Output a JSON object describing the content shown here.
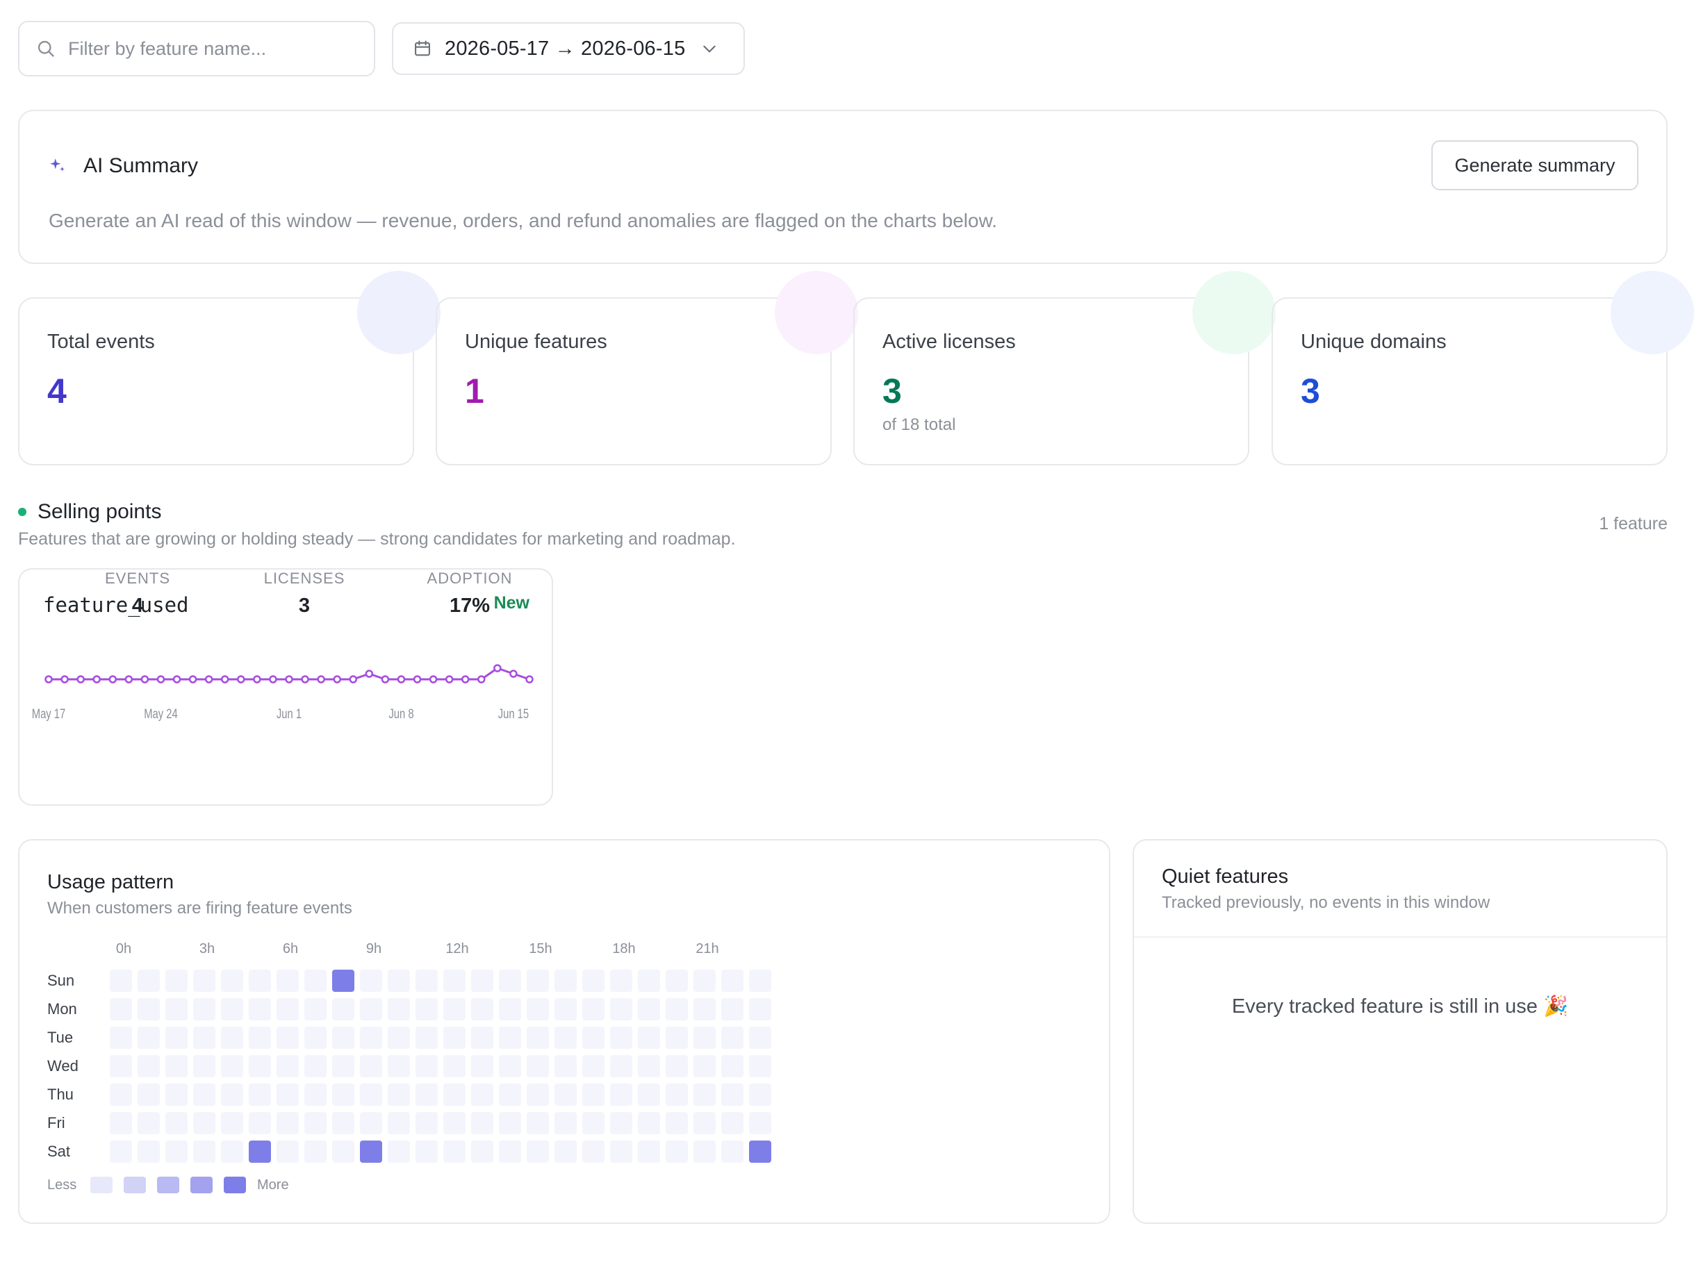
{
  "filters": {
    "search_placeholder": "Filter by feature name...",
    "date_range": "2026-05-17 → 2026-06-15"
  },
  "ai_summary": {
    "title": "AI Summary",
    "description": "Generate an AI read of this window — revenue, orders, and refund anomalies are flagged on the charts below.",
    "button": "Generate summary",
    "accent": "#5b5bd6"
  },
  "stats": [
    {
      "label": "Total events",
      "value": "4",
      "sub": "",
      "color": "#4338ca",
      "blob": "#eef0fe"
    },
    {
      "label": "Unique features",
      "value": "1",
      "sub": "",
      "color": "#a21caf",
      "blob": "#fbf0fd"
    },
    {
      "label": "Active licenses",
      "value": "3",
      "sub": "of 18 total",
      "color": "#047857",
      "blob": "#ecfbf2"
    },
    {
      "label": "Unique domains",
      "value": "3",
      "sub": "",
      "color": "#1d4ed8",
      "blob": "#eef3fe"
    }
  ],
  "selling_points": {
    "title": "Selling points",
    "subtitle": "Features that are growing or holding steady — strong candidates for marketing and roadmap.",
    "count": "1 feature",
    "features": [
      {
        "name": "feature_used",
        "badge": "New",
        "stats": [
          {
            "label": "EVENTS",
            "value": "4"
          },
          {
            "label": "LICENSES",
            "value": "3"
          },
          {
            "label": "ADOPTION",
            "value": "17%"
          }
        ]
      }
    ]
  },
  "chart_data": {
    "type": "line",
    "series": [
      {
        "values": [
          0,
          0,
          0,
          0,
          0,
          0,
          0,
          0,
          0,
          0,
          0,
          0,
          0,
          0,
          0,
          0,
          0,
          0,
          0,
          0,
          1,
          0,
          0,
          0,
          0,
          0,
          0,
          0,
          2,
          1,
          0
        ]
      }
    ],
    "x_ticks": [
      "May 17",
      "May 24",
      "Jun 1",
      "Jun 8",
      "Jun 15"
    ],
    "color": "#a64ce0"
  },
  "usage_pattern": {
    "title": "Usage pattern",
    "subtitle": "When customers are firing feature events",
    "hour_labels": [
      "0h",
      "3h",
      "6h",
      "9h",
      "12h",
      "15h",
      "18h",
      "21h"
    ],
    "day_labels": [
      "Sun",
      "Mon",
      "Tue",
      "Wed",
      "Thu",
      "Fri",
      "Sat"
    ],
    "active_cells": [
      {
        "day": "Sun",
        "hour": 8,
        "level": 4
      },
      {
        "day": "Sat",
        "hour": 5,
        "level": 4
      },
      {
        "day": "Sat",
        "hour": 9,
        "level": 4
      },
      {
        "day": "Sat",
        "hour": 23,
        "level": 4
      }
    ],
    "legend_less": "Less",
    "legend_more": "More",
    "scale_colors": [
      "#e8e8fb",
      "#d2d2f7",
      "#b9b9f3",
      "#a2a2ef",
      "#7e7ee9"
    ],
    "empty_color": "#f4f4fc"
  },
  "quiet_features": {
    "title": "Quiet features",
    "subtitle": "Tracked previously, no events in this window",
    "empty_message": "Every tracked feature is still in use 🎉"
  }
}
